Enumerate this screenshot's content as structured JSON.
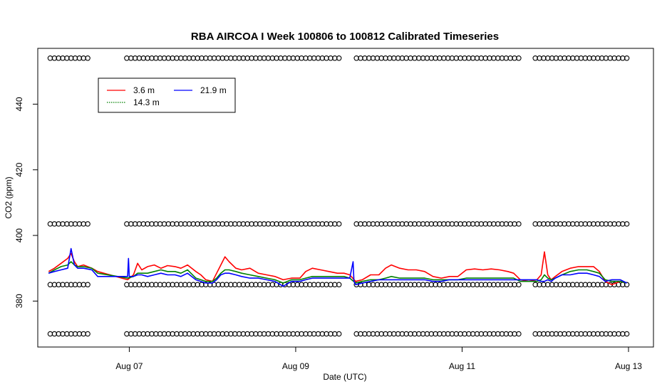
{
  "chart_data": {
    "type": "line",
    "title": "RBA AIRCOA I  Week 100806 to 100812  Calibrated Timeseries",
    "xlabel": "Date (UTC)",
    "ylabel": "CO2 (ppm)",
    "xlim": [
      5.9,
      13.3
    ],
    "ylim": [
      366,
      457
    ],
    "x_ticks": [
      {
        "value": 7,
        "label": "Aug 07"
      },
      {
        "value": 9,
        "label": "Aug 09"
      },
      {
        "value": 11,
        "label": "Aug 11"
      },
      {
        "value": 13,
        "label": "Aug 13"
      }
    ],
    "y_ticks": [
      {
        "value": 380,
        "label": "380"
      },
      {
        "value": 400,
        "label": "400"
      },
      {
        "value": 420,
        "label": "420"
      },
      {
        "value": 440,
        "label": "440"
      }
    ],
    "legend": {
      "placement": "top-left",
      "entries": [
        {
          "name": "3.6 m",
          "color": "#ff0000"
        },
        {
          "name": "14.3 m",
          "color": "#008000"
        },
        {
          "name": "21.9 m",
          "color": "#0000ff"
        }
      ]
    },
    "series": [
      {
        "name": "3.6 m",
        "color": "#ff0000",
        "points": [
          [
            6.03,
            389.0
          ],
          [
            6.1,
            390.0
          ],
          [
            6.18,
            391.5
          ],
          [
            6.26,
            393.0
          ],
          [
            6.3,
            394.5
          ],
          [
            6.34,
            392.0
          ],
          [
            6.38,
            390.5
          ],
          [
            6.45,
            391.0
          ],
          [
            6.55,
            390.0
          ],
          [
            6.62,
            389.0
          ],
          [
            6.98,
            386.5
          ],
          [
            7.05,
            388.0
          ],
          [
            7.1,
            391.5
          ],
          [
            7.15,
            389.5
          ],
          [
            7.22,
            390.5
          ],
          [
            7.3,
            391.0
          ],
          [
            7.38,
            390.0
          ],
          [
            7.46,
            390.8
          ],
          [
            7.55,
            390.5
          ],
          [
            7.62,
            390.0
          ],
          [
            7.7,
            391.0
          ],
          [
            7.8,
            389.0
          ],
          [
            7.86,
            388.0
          ],
          [
            7.92,
            386.5
          ],
          [
            8.0,
            386.0
          ],
          [
            8.05,
            388.5
          ],
          [
            8.1,
            391.0
          ],
          [
            8.15,
            393.5
          ],
          [
            8.2,
            392.0
          ],
          [
            8.28,
            390.0
          ],
          [
            8.35,
            389.5
          ],
          [
            8.45,
            390.0
          ],
          [
            8.55,
            388.5
          ],
          [
            8.65,
            388.0
          ],
          [
            8.75,
            387.5
          ],
          [
            8.85,
            386.5
          ],
          [
            8.95,
            387.0
          ],
          [
            9.05,
            387.0
          ],
          [
            9.12,
            389.0
          ],
          [
            9.2,
            390.0
          ],
          [
            9.3,
            389.5
          ],
          [
            9.4,
            389.0
          ],
          [
            9.5,
            388.5
          ],
          [
            9.58,
            388.5
          ],
          [
            9.65,
            388.0
          ],
          [
            9.72,
            386.0
          ],
          [
            9.8,
            386.5
          ],
          [
            9.9,
            388.0
          ],
          [
            10.0,
            388.0
          ],
          [
            10.08,
            390.0
          ],
          [
            10.15,
            391.0
          ],
          [
            10.25,
            390.0
          ],
          [
            10.35,
            389.5
          ],
          [
            10.45,
            389.5
          ],
          [
            10.55,
            389.0
          ],
          [
            10.65,
            387.5
          ],
          [
            10.75,
            387.0
          ],
          [
            10.85,
            387.5
          ],
          [
            10.95,
            387.5
          ],
          [
            11.05,
            389.5
          ],
          [
            11.15,
            389.8
          ],
          [
            11.25,
            389.5
          ],
          [
            11.35,
            389.8
          ],
          [
            11.45,
            389.5
          ],
          [
            11.55,
            389.0
          ],
          [
            11.62,
            388.5
          ],
          [
            11.7,
            386.5
          ],
          [
            11.8,
            386.0
          ],
          [
            11.9,
            386.5
          ],
          [
            11.95,
            388.0
          ],
          [
            11.99,
            395.0
          ],
          [
            12.03,
            388.0
          ],
          [
            12.07,
            386.5
          ],
          [
            12.12,
            387.5
          ],
          [
            12.2,
            389.0
          ],
          [
            12.3,
            390.0
          ],
          [
            12.4,
            390.5
          ],
          [
            12.5,
            390.5
          ],
          [
            12.58,
            390.5
          ],
          [
            12.65,
            389.0
          ],
          [
            12.72,
            386.0
          ],
          [
            12.8,
            385.0
          ],
          [
            12.9,
            386.0
          ],
          [
            12.98,
            385.5
          ]
        ]
      },
      {
        "name": "14.3 m",
        "color": "#008000",
        "points": [
          [
            6.03,
            388.5
          ],
          [
            6.1,
            389.5
          ],
          [
            6.18,
            390.5
          ],
          [
            6.26,
            391.0
          ],
          [
            6.3,
            392.0
          ],
          [
            6.34,
            391.0
          ],
          [
            6.38,
            390.5
          ],
          [
            6.45,
            390.5
          ],
          [
            6.55,
            390.0
          ],
          [
            6.62,
            388.5
          ],
          [
            6.98,
            387.0
          ],
          [
            7.05,
            387.5
          ],
          [
            7.1,
            388.5
          ],
          [
            7.15,
            388.5
          ],
          [
            7.22,
            388.5
          ],
          [
            7.3,
            389.0
          ],
          [
            7.38,
            389.5
          ],
          [
            7.46,
            389.0
          ],
          [
            7.55,
            389.0
          ],
          [
            7.62,
            388.5
          ],
          [
            7.7,
            389.5
          ],
          [
            7.8,
            387.0
          ],
          [
            7.86,
            386.5
          ],
          [
            7.92,
            386.0
          ],
          [
            8.0,
            386.0
          ],
          [
            8.05,
            387.0
          ],
          [
            8.1,
            388.5
          ],
          [
            8.15,
            389.5
          ],
          [
            8.2,
            389.5
          ],
          [
            8.28,
            389.0
          ],
          [
            8.35,
            388.5
          ],
          [
            8.45,
            388.0
          ],
          [
            8.55,
            387.5
          ],
          [
            8.65,
            387.0
          ],
          [
            8.75,
            386.5
          ],
          [
            8.85,
            385.5
          ],
          [
            8.95,
            386.5
          ],
          [
            9.05,
            386.5
          ],
          [
            9.12,
            387.0
          ],
          [
            9.2,
            387.5
          ],
          [
            9.3,
            387.5
          ],
          [
            9.4,
            387.5
          ],
          [
            9.5,
            387.5
          ],
          [
            9.58,
            387.5
          ],
          [
            9.65,
            387.0
          ],
          [
            9.72,
            385.5
          ],
          [
            9.8,
            386.0
          ],
          [
            9.9,
            386.5
          ],
          [
            10.0,
            386.5
          ],
          [
            10.08,
            387.0
          ],
          [
            10.15,
            387.5
          ],
          [
            10.25,
            387.0
          ],
          [
            10.35,
            387.0
          ],
          [
            10.45,
            387.0
          ],
          [
            10.55,
            387.0
          ],
          [
            10.65,
            386.5
          ],
          [
            10.75,
            386.5
          ],
          [
            10.85,
            386.5
          ],
          [
            10.95,
            386.5
          ],
          [
            11.05,
            387.0
          ],
          [
            11.15,
            387.0
          ],
          [
            11.25,
            387.0
          ],
          [
            11.35,
            387.0
          ],
          [
            11.45,
            387.0
          ],
          [
            11.55,
            387.0
          ],
          [
            11.62,
            387.0
          ],
          [
            11.7,
            386.0
          ],
          [
            11.8,
            386.0
          ],
          [
            11.9,
            386.0
          ],
          [
            11.95,
            386.5
          ],
          [
            11.99,
            388.0
          ],
          [
            12.03,
            387.0
          ],
          [
            12.07,
            386.5
          ],
          [
            12.12,
            387.0
          ],
          [
            12.2,
            388.0
          ],
          [
            12.3,
            389.0
          ],
          [
            12.4,
            389.5
          ],
          [
            12.5,
            389.5
          ],
          [
            12.58,
            389.0
          ],
          [
            12.65,
            388.5
          ],
          [
            12.72,
            386.5
          ],
          [
            12.8,
            386.0
          ],
          [
            12.9,
            386.0
          ],
          [
            12.98,
            385.5
          ]
        ]
      },
      {
        "name": "21.9 m",
        "color": "#0000ff",
        "points": [
          [
            6.03,
            388.5
          ],
          [
            6.1,
            389.0
          ],
          [
            6.18,
            389.5
          ],
          [
            6.26,
            390.0
          ],
          [
            6.3,
            396.0
          ],
          [
            6.34,
            391.0
          ],
          [
            6.38,
            390.0
          ],
          [
            6.45,
            390.0
          ],
          [
            6.55,
            389.5
          ],
          [
            6.62,
            387.5
          ],
          [
            6.98,
            387.5
          ],
          [
            6.99,
            393.0
          ],
          [
            7.0,
            387.5
          ],
          [
            7.05,
            387.5
          ],
          [
            7.1,
            388.0
          ],
          [
            7.15,
            388.0
          ],
          [
            7.22,
            387.5
          ],
          [
            7.3,
            388.0
          ],
          [
            7.38,
            388.5
          ],
          [
            7.46,
            388.0
          ],
          [
            7.55,
            388.0
          ],
          [
            7.62,
            387.5
          ],
          [
            7.7,
            388.5
          ],
          [
            7.8,
            386.5
          ],
          [
            7.86,
            386.0
          ],
          [
            7.92,
            385.5
          ],
          [
            8.0,
            385.5
          ],
          [
            8.05,
            386.5
          ],
          [
            8.1,
            388.0
          ],
          [
            8.15,
            388.5
          ],
          [
            8.2,
            388.5
          ],
          [
            8.28,
            388.0
          ],
          [
            8.35,
            387.5
          ],
          [
            8.45,
            387.0
          ],
          [
            8.55,
            387.0
          ],
          [
            8.65,
            386.5
          ],
          [
            8.75,
            386.0
          ],
          [
            8.85,
            384.5
          ],
          [
            8.95,
            386.0
          ],
          [
            9.05,
            386.0
          ],
          [
            9.12,
            386.5
          ],
          [
            9.2,
            387.0
          ],
          [
            9.3,
            387.0
          ],
          [
            9.4,
            387.0
          ],
          [
            9.5,
            387.0
          ],
          [
            9.58,
            387.0
          ],
          [
            9.65,
            387.0
          ],
          [
            9.69,
            392.0
          ],
          [
            9.7,
            386.0
          ],
          [
            9.72,
            385.0
          ],
          [
            9.8,
            385.5
          ],
          [
            9.9,
            386.0
          ],
          [
            10.0,
            386.5
          ],
          [
            10.08,
            386.5
          ],
          [
            10.15,
            386.5
          ],
          [
            10.25,
            386.5
          ],
          [
            10.35,
            386.5
          ],
          [
            10.45,
            386.5
          ],
          [
            10.55,
            386.5
          ],
          [
            10.65,
            386.0
          ],
          [
            10.75,
            386.0
          ],
          [
            10.85,
            386.5
          ],
          [
            10.95,
            386.5
          ],
          [
            11.05,
            386.5
          ],
          [
            11.15,
            386.5
          ],
          [
            11.25,
            386.5
          ],
          [
            11.35,
            386.5
          ],
          [
            11.45,
            386.5
          ],
          [
            11.55,
            386.5
          ],
          [
            11.62,
            386.5
          ],
          [
            11.7,
            386.5
          ],
          [
            11.8,
            386.5
          ],
          [
            11.9,
            386.5
          ],
          [
            11.95,
            386.0
          ],
          [
            11.99,
            386.0
          ],
          [
            12.03,
            386.5
          ],
          [
            12.07,
            386.0
          ],
          [
            12.12,
            387.0
          ],
          [
            12.2,
            388.0
          ],
          [
            12.3,
            388.0
          ],
          [
            12.4,
            388.5
          ],
          [
            12.5,
            388.5
          ],
          [
            12.58,
            388.0
          ],
          [
            12.65,
            387.5
          ],
          [
            12.72,
            386.0
          ],
          [
            12.8,
            386.5
          ],
          [
            12.9,
            386.5
          ],
          [
            12.98,
            385.5
          ]
        ]
      }
    ],
    "calibration_points": {
      "marker": "open-circle",
      "levels": [
        454,
        403.5,
        385,
        370
      ],
      "segments": [
        [
          6.05,
          6.5
        ],
        [
          6.97,
          9.55
        ],
        [
          9.73,
          11.68
        ],
        [
          11.88,
          13.0
        ]
      ],
      "spacing": 0.05
    }
  }
}
